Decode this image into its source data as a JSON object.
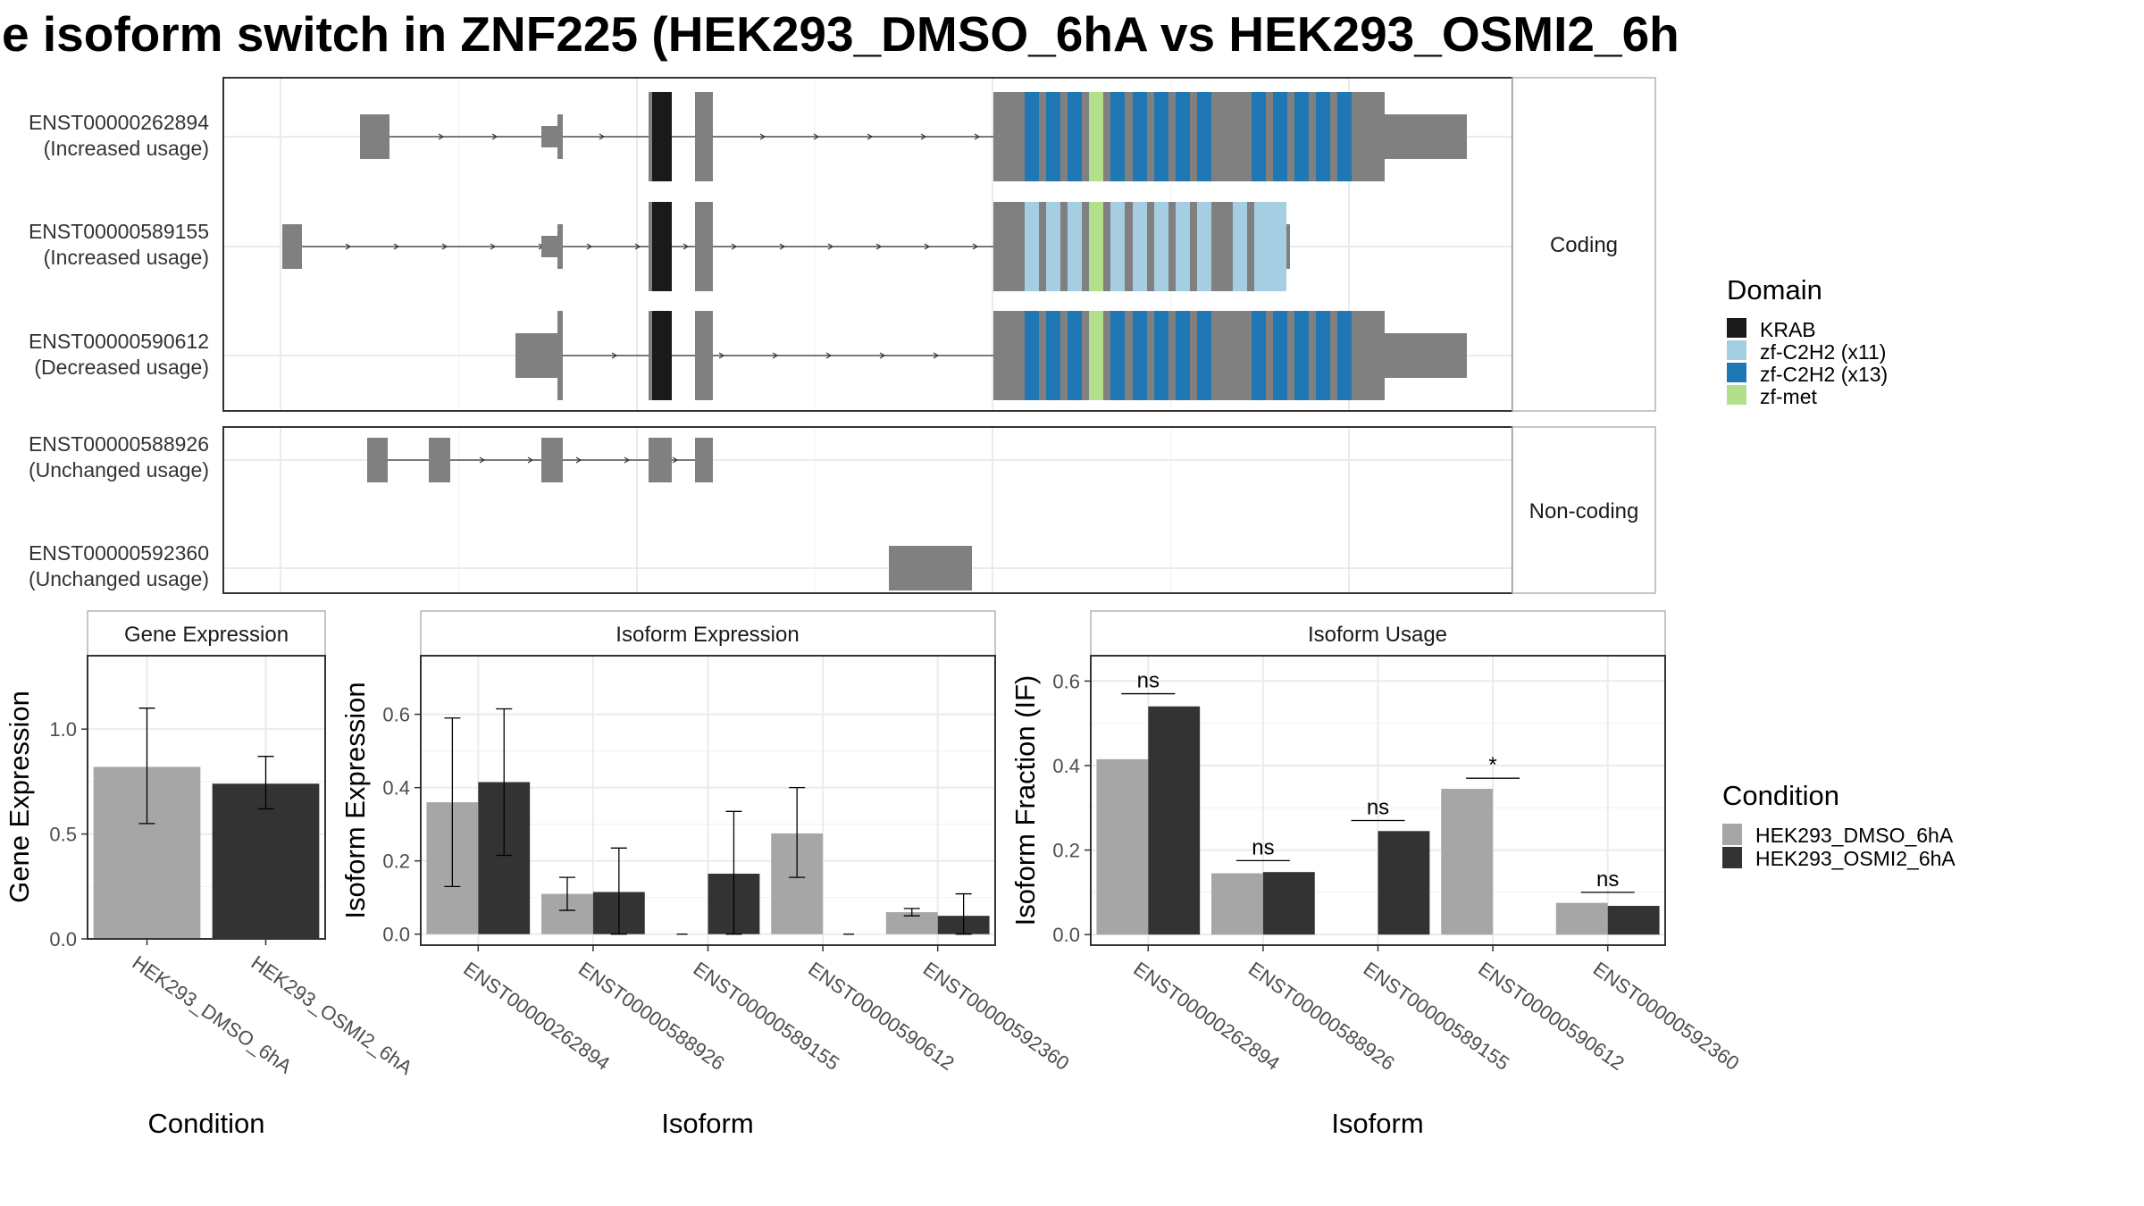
{
  "title": "e isoform switch in ZNF225 (HEK293_DMSO_6hA vs HEK293_OSMI2_6h",
  "colors": {
    "exon": "#808080",
    "KRAB": "#1a1a1a",
    "zf_C2H2_x11": "#a6cee3",
    "zf_C2H2_x13": "#1f78b4",
    "zf_met": "#b2df8a",
    "DMSO": "#a6a6a6",
    "OSMI2": "#333333",
    "panel_border": "#333333",
    "strip_border": "#b3b3b3",
    "grid": "#ebebeb"
  },
  "structure": {
    "coding_label": "Coding",
    "noncoding_label": "Non-coding",
    "transcripts": [
      {
        "id": "ENST00000262894",
        "usage": "(Increased usage)",
        "group": "coding"
      },
      {
        "id": "ENST00000589155",
        "usage": "(Increased usage)",
        "group": "coding"
      },
      {
        "id": "ENST00000590612",
        "usage": "(Decreased usage)",
        "group": "coding"
      },
      {
        "id": "ENST00000588926",
        "usage": "(Unchanged usage)",
        "group": "noncoding"
      },
      {
        "id": "ENST00000592360",
        "usage": "(Unchanged usage)",
        "group": "noncoding"
      }
    ]
  },
  "domain_legend": {
    "title": "Domain",
    "items": [
      {
        "label": "KRAB",
        "color": "#1a1a1a"
      },
      {
        "label": "zf-C2H2 (x11)",
        "color": "#a6cee3"
      },
      {
        "label": "zf-C2H2 (x13)",
        "color": "#1f78b4"
      },
      {
        "label": "zf-met",
        "color": "#b2df8a"
      }
    ]
  },
  "condition_legend": {
    "title": "Condition",
    "items": [
      {
        "label": "HEK293_DMSO_6hA",
        "color": "#a6a6a6"
      },
      {
        "label": "HEK293_OSMI2_6hA",
        "color": "#333333"
      }
    ]
  },
  "chart_data": [
    {
      "type": "bar",
      "title": "Gene Expression",
      "xlabel": "Condition",
      "ylabel": "Gene Expression",
      "categories": [
        "HEK293_DMSO_6hA",
        "HEK293_OSMI2_6hA"
      ],
      "values": [
        0.82,
        0.74
      ],
      "error_low": [
        0.55,
        0.62
      ],
      "error_high": [
        1.1,
        0.87
      ],
      "ylim": [
        0,
        1.35
      ],
      "yticks": [
        0.0,
        0.5,
        1.0
      ],
      "ytick_labels": [
        "0.0",
        "0.5",
        "1.0"
      ]
    },
    {
      "type": "bar",
      "title": "Isoform Expression",
      "xlabel": "Isoform",
      "ylabel": "Isoform Expression",
      "categories": [
        "ENST00000262894",
        "ENST00000588926",
        "ENST00000589155",
        "ENST00000590612",
        "ENST00000592360"
      ],
      "series": [
        {
          "name": "HEK293_DMSO_6hA",
          "values": [
            0.36,
            0.11,
            0.0,
            0.275,
            0.06
          ],
          "error_low": [
            0.13,
            0.065,
            0.0,
            0.155,
            0.05
          ],
          "error_high": [
            0.59,
            0.155,
            0.0,
            0.4,
            0.07
          ]
        },
        {
          "name": "HEK293_OSMI2_6hA",
          "values": [
            0.415,
            0.115,
            0.165,
            0.0,
            0.05
          ],
          "error_low": [
            0.215,
            0.0,
            0.0,
            0.0,
            0.0
          ],
          "error_high": [
            0.615,
            0.235,
            0.335,
            0.0,
            0.11
          ]
        }
      ],
      "ylim": [
        -0.03,
        0.76
      ],
      "yticks": [
        0.0,
        0.2,
        0.4,
        0.6
      ],
      "ytick_labels": [
        "0.0",
        "0.2",
        "0.4",
        "0.6"
      ]
    },
    {
      "type": "bar",
      "title": "Isoform Usage",
      "xlabel": "Isoform",
      "ylabel": "Isoform Fraction (IF)",
      "categories": [
        "ENST00000262894",
        "ENST00000588926",
        "ENST00000589155",
        "ENST00000590612",
        "ENST00000592360"
      ],
      "series": [
        {
          "name": "HEK293_DMSO_6hA",
          "values": [
            0.415,
            0.145,
            0.0,
            0.345,
            0.075
          ]
        },
        {
          "name": "HEK293_OSMI2_6hA",
          "values": [
            0.54,
            0.148,
            0.245,
            0.0,
            0.068
          ]
        }
      ],
      "significance": [
        {
          "label": "ns",
          "y": 0.57
        },
        {
          "label": "ns",
          "y": 0.175
        },
        {
          "label": "ns",
          "y": 0.27
        },
        {
          "label": "*",
          "y": 0.37
        },
        {
          "label": "ns",
          "y": 0.1
        }
      ],
      "ylim": [
        -0.025,
        0.66
      ],
      "yticks": [
        0.0,
        0.2,
        0.4,
        0.6
      ],
      "ytick_labels": [
        "0.0",
        "0.2",
        "0.4",
        "0.6"
      ]
    }
  ]
}
